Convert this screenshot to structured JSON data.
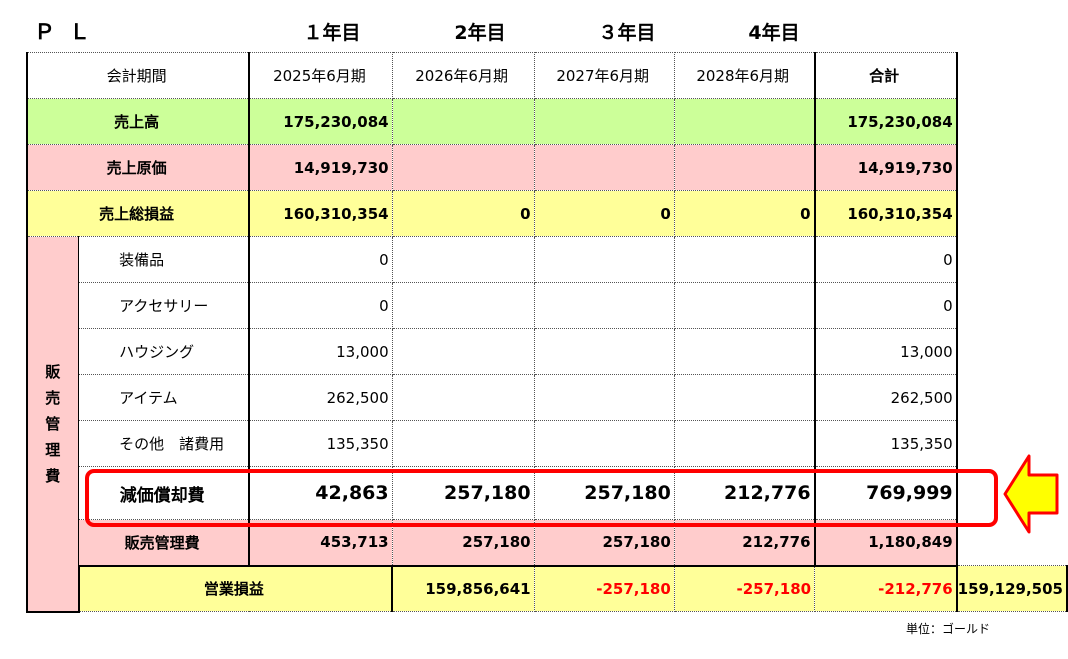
{
  "title": "ＰＬ",
  "year_headers": [
    "１年目",
    "2年目",
    "３年目",
    "4年目"
  ],
  "columns": {
    "label": "会計期間",
    "periods": [
      "2025年6月期",
      "2026年6月期",
      "2027年6月期",
      "2028年6月期"
    ],
    "total": "合計"
  },
  "rows": {
    "sales": {
      "label": "売上高",
      "values": [
        "175,230,084",
        "",
        "",
        ""
      ],
      "total": "175,230,084"
    },
    "cogs": {
      "label": "売上原価",
      "values": [
        "14,919,730",
        "",
        "",
        ""
      ],
      "total": "14,919,730"
    },
    "gross": {
      "label": "売上総損益",
      "values": [
        "160,310,354",
        "0",
        "0",
        "0"
      ],
      "total": "160,310,354"
    },
    "sga_group_label": "販売管理費",
    "sga_items": [
      {
        "label": "装備品",
        "values": [
          "0",
          "",
          "",
          ""
        ],
        "total": "0"
      },
      {
        "label": "アクセサリー",
        "values": [
          "0",
          "",
          "",
          ""
        ],
        "total": "0"
      },
      {
        "label": "ハウジング",
        "values": [
          "13,000",
          "",
          "",
          ""
        ],
        "total": "13,000"
      },
      {
        "label": "アイテム",
        "values": [
          "262,500",
          "",
          "",
          ""
        ],
        "total": "262,500"
      },
      {
        "label": "その他　諸費用",
        "values": [
          "135,350",
          "",
          "",
          ""
        ],
        "total": "135,350"
      }
    ],
    "depreciation": {
      "label": "減価償却費",
      "values": [
        "42,863",
        "257,180",
        "257,180",
        "212,776"
      ],
      "total": "769,999"
    },
    "sga_total": {
      "label": "販売管理費",
      "values": [
        "453,713",
        "257,180",
        "257,180",
        "212,776"
      ],
      "total": "1,180,849"
    },
    "operating": {
      "label": "営業損益",
      "values": [
        "159,856,641",
        "-257,180",
        "-257,180",
        "-212,776"
      ],
      "total": "159,129,505"
    }
  },
  "unit_note": "単位：ゴールド",
  "colors": {
    "sales": "#ccff99",
    "cost": "#ffcccc",
    "profit": "#ffff99",
    "negative": "#ff0000",
    "highlight": "#ff0000",
    "arrow": "#ffff00"
  },
  "icons": {
    "pointer": "left-arrow-icon"
  }
}
